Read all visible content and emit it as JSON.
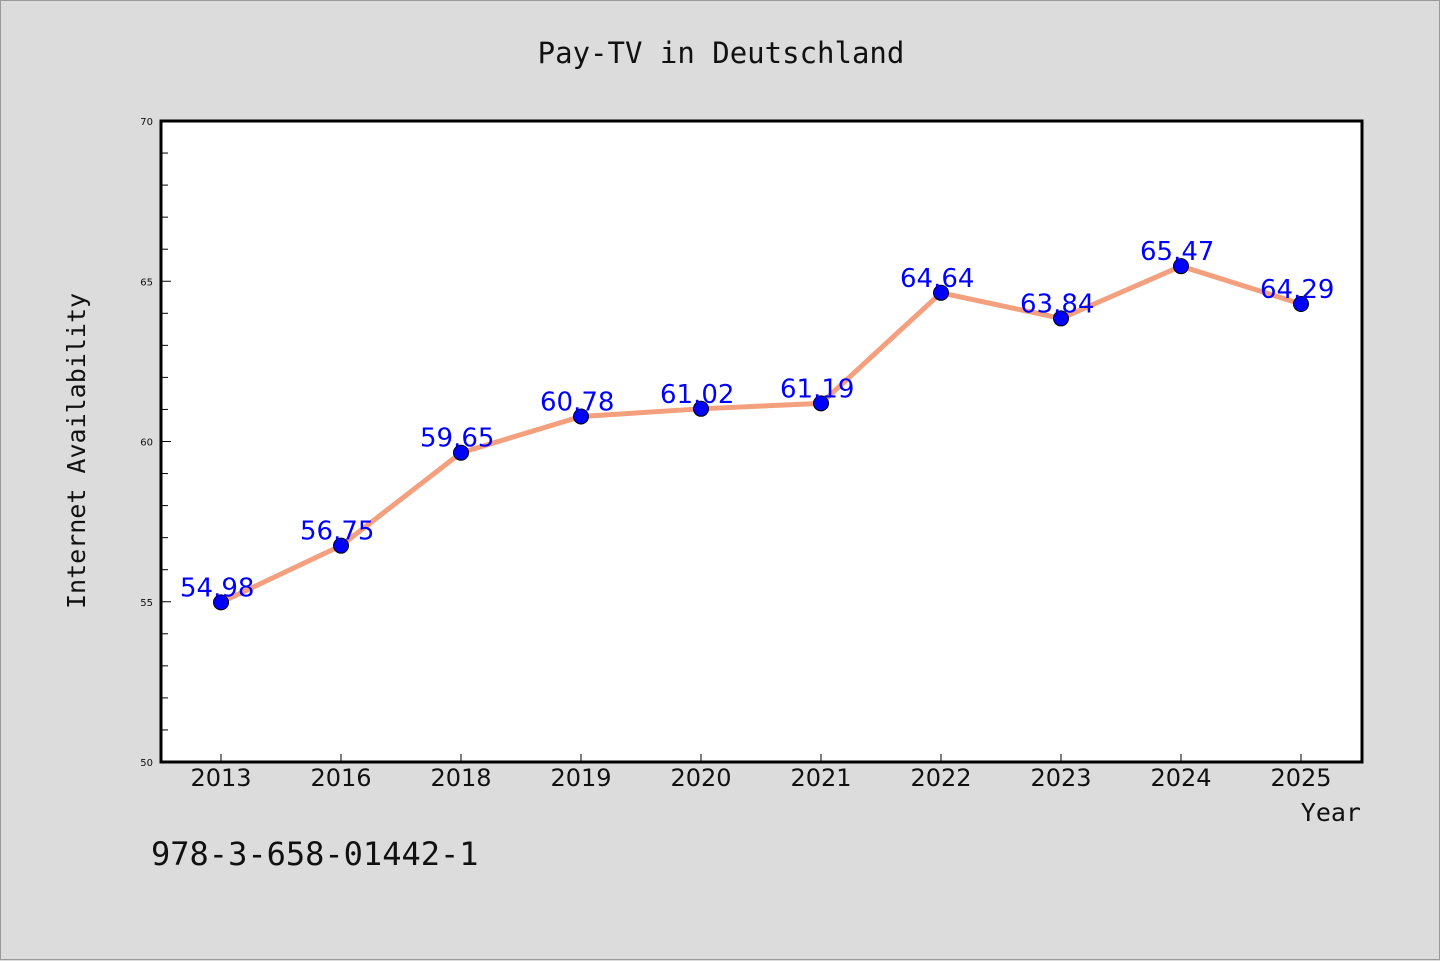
{
  "chart_data": {
    "type": "line",
    "title": "Pay-TV in Deutschland",
    "xlabel": "Year",
    "ylabel": "Internet Availability",
    "categories": [
      "2013",
      "2016",
      "2018",
      "2019",
      "2020",
      "2021",
      "2022",
      "2023",
      "2024",
      "2025"
    ],
    "series": [
      {
        "values": [
          54.98,
          56.75,
          59.65,
          60.78,
          61.02,
          61.19,
          64.64,
          63.84,
          65.47,
          64.29
        ],
        "labels": [
          "54.98",
          "56.75",
          "59.65",
          "60.78",
          "61.02",
          "61.19",
          "64.64",
          "63.84",
          "65.47",
          "64.29"
        ]
      }
    ],
    "ylim": [
      50,
      70
    ],
    "yticks": [
      "50",
      "55",
      "60",
      "65",
      "70"
    ],
    "grid": false,
    "legend": "none",
    "colors": {
      "line": "#f4a07e",
      "marker": "#0000ff",
      "data_label": "#0000ff",
      "background": "#dcdcdc",
      "plot_area": "#ffffff"
    }
  },
  "footnote": "978-3-658-01442-1"
}
